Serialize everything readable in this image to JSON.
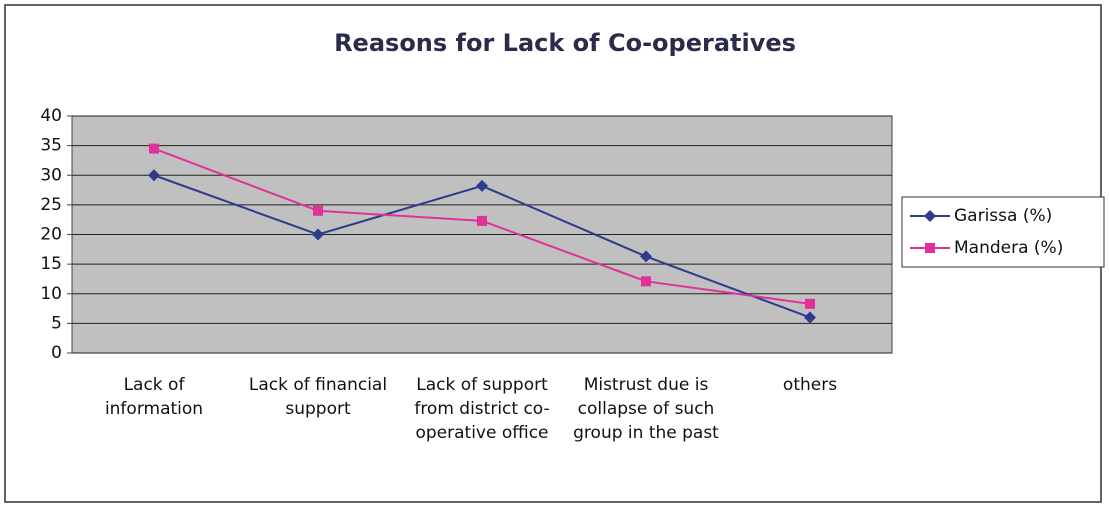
{
  "chart_data": {
    "type": "line",
    "title": "Reasons for Lack of Co-operatives",
    "categories": [
      "Lack of information",
      "Lack of financial support",
      "Lack of support from district co-operative office",
      "Mistrust due is collapse of such group in the past",
      "others"
    ],
    "series": [
      {
        "name": "Garissa (%)",
        "color": "#2e3a8c",
        "marker": "diamond",
        "values": [
          30,
          20,
          28.2,
          16.3,
          6
        ]
      },
      {
        "name": "Mandera (%)",
        "color": "#e0309a",
        "marker": "square",
        "values": [
          34.5,
          24,
          22.3,
          12.1,
          8.3
        ]
      }
    ],
    "ylim": [
      0,
      40
    ],
    "yticks": [
      0,
      5,
      10,
      15,
      20,
      25,
      30,
      35,
      40
    ],
    "grid": true,
    "legend": "right"
  }
}
